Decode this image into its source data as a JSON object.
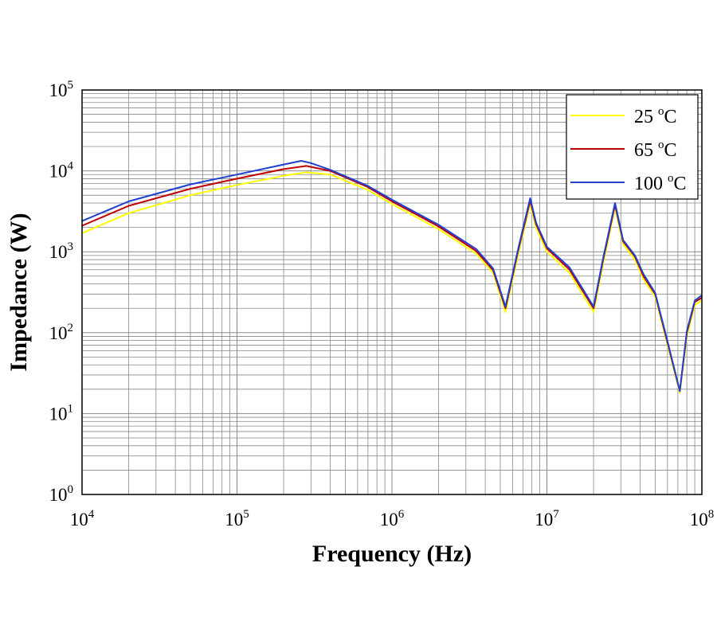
{
  "chart_data": {
    "type": "line",
    "title": "",
    "xlabel": "Frequency (Hz)",
    "ylabel": "Impedance (W)",
    "x_scale": "log",
    "y_scale": "log",
    "xlim": [
      10000,
      100000000
    ],
    "ylim": [
      1,
      100000
    ],
    "grid": true,
    "legend_position": "top-right",
    "x_ticks": [
      {
        "base": "10",
        "exp": "4"
      },
      {
        "base": "10",
        "exp": "5"
      },
      {
        "base": "10",
        "exp": "6"
      },
      {
        "base": "10",
        "exp": "7"
      },
      {
        "base": "10",
        "exp": "8"
      }
    ],
    "y_ticks": [
      {
        "base": "10",
        "exp": "0"
      },
      {
        "base": "10",
        "exp": "1"
      },
      {
        "base": "10",
        "exp": "2"
      },
      {
        "base": "10",
        "exp": "3"
      },
      {
        "base": "10",
        "exp": "4"
      },
      {
        "base": "10",
        "exp": "5"
      }
    ],
    "series": [
      {
        "name": "25 °C",
        "label_value": "25",
        "label_unit": "C",
        "label_deg": "o",
        "color": "#ffff00",
        "x": [
          10000,
          20000,
          50000,
          100000,
          200000,
          280000,
          400000,
          700000,
          1000000,
          2000000,
          3500000,
          4500000,
          5400000,
          6500000,
          7800000,
          8500000,
          10000000,
          14000000,
          20000000,
          23000000,
          27500000,
          31000000,
          37000000,
          42000000,
          50000000,
          60000000,
          72000000,
          80000000,
          90000000,
          100000000
        ],
        "y": [
          1700,
          3000,
          5000,
          6700,
          8700,
          9600,
          9000,
          5800,
          3900,
          1900,
          950,
          550,
          180,
          900,
          3900,
          2000,
          1000,
          550,
          180,
          700,
          3500,
          1250,
          800,
          460,
          280,
          70,
          18,
          90,
          220,
          250
        ]
      },
      {
        "name": "65 °C",
        "label_value": "65",
        "label_unit": "C",
        "label_deg": "o",
        "color": "#c00000",
        "x": [
          10000,
          20000,
          50000,
          100000,
          200000,
          280000,
          400000,
          700000,
          1000000,
          2000000,
          3500000,
          4500000,
          5400000,
          6500000,
          7800000,
          8500000,
          10000000,
          14000000,
          20000000,
          23000000,
          27500000,
          31000000,
          37000000,
          42000000,
          50000000,
          60000000,
          72000000,
          80000000,
          90000000,
          100000000
        ],
        "y": [
          2100,
          3700,
          6000,
          8000,
          10500,
          11500,
          10000,
          6300,
          4200,
          2050,
          1020,
          590,
          200,
          1000,
          4300,
          2200,
          1100,
          600,
          200,
          780,
          3800,
          1350,
          870,
          500,
          300,
          75,
          19,
          100,
          240,
          270
        ]
      },
      {
        "name": "100 °C",
        "label_value": "100",
        "label_unit": "C",
        "label_deg": "o",
        "color": "#2040d0",
        "x": [
          10000,
          20000,
          50000,
          100000,
          200000,
          260000,
          300000,
          400000,
          700000,
          1000000,
          2000000,
          3500000,
          4500000,
          5400000,
          6500000,
          7800000,
          8500000,
          10000000,
          14000000,
          20000000,
          23000000,
          27500000,
          31000000,
          37000000,
          42000000,
          50000000,
          60000000,
          72000000,
          80000000,
          90000000,
          100000000
        ],
        "y": [
          2400,
          4200,
          6800,
          9000,
          12000,
          13300,
          12500,
          10300,
          6500,
          4400,
          2150,
          1080,
          620,
          210,
          1050,
          4600,
          2300,
          1150,
          640,
          210,
          820,
          4000,
          1400,
          900,
          530,
          310,
          78,
          19,
          105,
          250,
          290
        ]
      }
    ]
  }
}
